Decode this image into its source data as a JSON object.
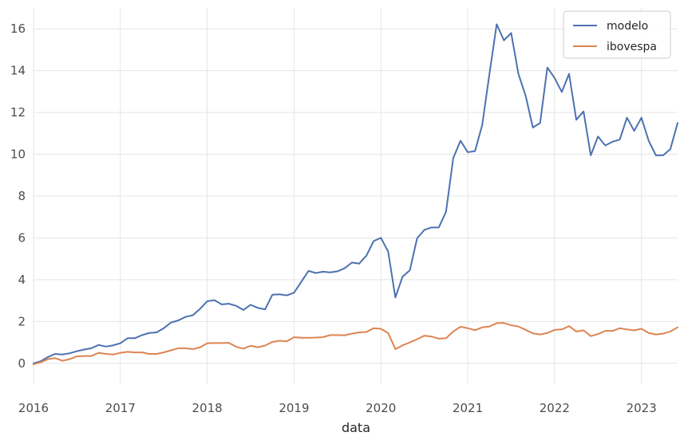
{
  "chart_data": {
    "type": "line",
    "xlabel": "data",
    "ylabel": "",
    "xlim": [
      "2016-01",
      "2023-06"
    ],
    "ylim": [
      -1,
      17
    ],
    "grid": true,
    "legend_position": "top-right",
    "x_ticks": [
      "2016",
      "2017",
      "2018",
      "2019",
      "2020",
      "2021",
      "2022",
      "2023"
    ],
    "y_ticks": [
      "0",
      "2",
      "4",
      "6",
      "8",
      "10",
      "12",
      "14",
      "16"
    ],
    "dates": [
      "2016-01",
      "2016-02",
      "2016-03",
      "2016-04",
      "2016-05",
      "2016-06",
      "2016-07",
      "2016-08",
      "2016-09",
      "2016-10",
      "2016-11",
      "2016-12",
      "2017-01",
      "2017-02",
      "2017-03",
      "2017-04",
      "2017-05",
      "2017-06",
      "2017-07",
      "2017-08",
      "2017-09",
      "2017-10",
      "2017-11",
      "2017-12",
      "2018-01",
      "2018-02",
      "2018-03",
      "2018-04",
      "2018-05",
      "2018-06",
      "2018-07",
      "2018-08",
      "2018-09",
      "2018-10",
      "2018-11",
      "2018-12",
      "2019-01",
      "2019-02",
      "2019-03",
      "2019-04",
      "2019-05",
      "2019-06",
      "2019-07",
      "2019-08",
      "2019-09",
      "2019-10",
      "2019-11",
      "2019-12",
      "2020-01",
      "2020-02",
      "2020-03",
      "2020-04",
      "2020-05",
      "2020-06",
      "2020-07",
      "2020-08",
      "2020-09",
      "2020-10",
      "2020-11",
      "2020-12",
      "2021-01",
      "2021-02",
      "2021-03",
      "2021-04",
      "2021-05",
      "2021-06",
      "2021-07",
      "2021-08",
      "2021-09",
      "2021-10",
      "2021-11",
      "2021-12",
      "2022-01",
      "2022-02",
      "2022-03",
      "2022-04",
      "2022-05",
      "2022-06",
      "2022-07",
      "2022-08",
      "2022-09",
      "2022-10",
      "2022-11",
      "2022-12",
      "2023-01",
      "2023-02",
      "2023-03",
      "2023-04",
      "2023-05",
      "2023-06"
    ],
    "series": [
      {
        "name": "modelo",
        "color": "#4c72b0",
        "values": [
          0.0,
          0.1,
          0.3,
          0.45,
          0.42,
          0.48,
          0.58,
          0.66,
          0.72,
          0.88,
          0.8,
          0.86,
          0.96,
          1.2,
          1.2,
          1.35,
          1.45,
          1.48,
          1.68,
          1.95,
          2.05,
          2.22,
          2.3,
          2.6,
          2.97,
          3.02,
          2.82,
          2.85,
          2.75,
          2.55,
          2.8,
          2.65,
          2.58,
          3.28,
          3.3,
          3.25,
          3.38,
          3.9,
          4.42,
          4.32,
          4.38,
          4.35,
          4.4,
          4.55,
          4.82,
          4.77,
          5.15,
          5.85,
          6.0,
          5.35,
          3.15,
          4.15,
          4.45,
          5.98,
          6.38,
          6.5,
          6.5,
          7.25,
          9.82,
          10.65,
          10.1,
          10.15,
          11.4,
          13.85,
          16.22,
          15.45,
          15.8,
          13.85,
          12.8,
          11.28,
          11.5,
          14.15,
          13.65,
          12.98,
          13.85,
          11.65,
          12.05,
          9.95,
          10.85,
          10.42,
          10.6,
          10.7,
          11.75,
          11.12,
          11.75,
          10.65,
          9.95,
          9.95,
          10.25,
          11.5
        ]
      },
      {
        "name": "ibovespa",
        "color": "#dd8452",
        "values": [
          -0.05,
          0.05,
          0.2,
          0.25,
          0.12,
          0.2,
          0.33,
          0.35,
          0.35,
          0.5,
          0.45,
          0.42,
          0.5,
          0.55,
          0.52,
          0.52,
          0.45,
          0.45,
          0.52,
          0.62,
          0.72,
          0.72,
          0.68,
          0.76,
          0.96,
          0.97,
          0.97,
          0.98,
          0.79,
          0.7,
          0.84,
          0.77,
          0.85,
          1.02,
          1.08,
          1.05,
          1.25,
          1.22,
          1.22,
          1.23,
          1.25,
          1.35,
          1.35,
          1.34,
          1.42,
          1.48,
          1.5,
          1.68,
          1.65,
          1.45,
          0.68,
          0.86,
          1.0,
          1.15,
          1.32,
          1.28,
          1.18,
          1.2,
          1.52,
          1.75,
          1.68,
          1.58,
          1.72,
          1.76,
          1.92,
          1.93,
          1.82,
          1.76,
          1.6,
          1.43,
          1.38,
          1.45,
          1.6,
          1.62,
          1.78,
          1.52,
          1.58,
          1.3,
          1.4,
          1.55,
          1.55,
          1.68,
          1.62,
          1.58,
          1.65,
          1.45,
          1.38,
          1.42,
          1.52,
          1.72
        ]
      }
    ]
  }
}
